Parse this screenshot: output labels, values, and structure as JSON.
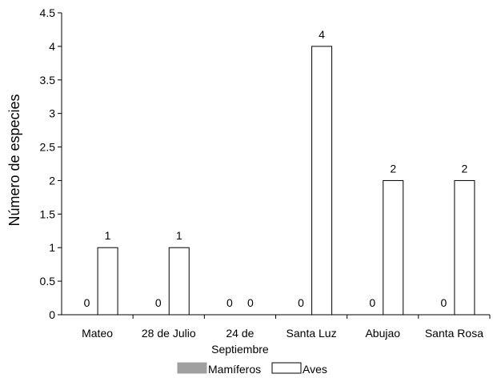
{
  "chart_data": {
    "type": "bar",
    "title": "",
    "xlabel": "",
    "ylabel": "Número de especies",
    "ylim": [
      0,
      4.5
    ],
    "yticks": [
      "0",
      "0.5",
      "1",
      "1.5",
      "2",
      "2.5",
      "3",
      "3.5",
      "4",
      "4.5"
    ],
    "categories": [
      [
        "Mateo"
      ],
      [
        "28 de Julio"
      ],
      [
        "24 de",
        "Septiembre"
      ],
      [
        "Santa Luz"
      ],
      [
        "Abujao"
      ],
      [
        "Santa Rosa"
      ]
    ],
    "series": [
      {
        "name": "Mamíferos",
        "values": [
          0,
          0,
          0,
          0,
          0,
          0
        ],
        "color": "#a0a0a0"
      },
      {
        "name": "Aves",
        "values": [
          1,
          1,
          0,
          4,
          2,
          2
        ],
        "color": "#ffffff"
      }
    ],
    "data_labels": true,
    "legend_position": "bottom",
    "grid": false
  }
}
